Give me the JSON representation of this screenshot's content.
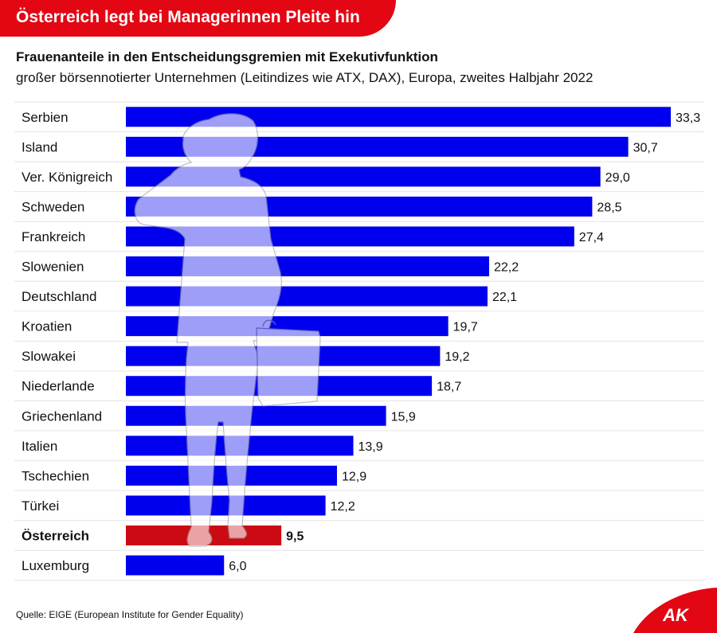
{
  "header": {
    "banner_title": "Österreich legt bei Managerinnen Pleite hin"
  },
  "chart_data": {
    "type": "bar",
    "orientation": "horizontal",
    "title": "Frauenanteile in den Entscheidungsgremien mit Exekutivfunktion",
    "subtitle": "großer börsennotierter Unternehmen (Leitindizes wie ATX, DAX), Europa, zweites Halbjahr 2022",
    "categories": [
      "Serbien",
      "Island",
      "Ver. Königreich",
      "Schweden",
      "Frankreich",
      "Slowenien",
      "Deutschland",
      "Kroatien",
      "Slowakei",
      "Niederlande",
      "Griechenland",
      "Italien",
      "Tschechien",
      "Türkei",
      "Österreich",
      "Luxemburg"
    ],
    "values": [
      33.3,
      30.7,
      29.0,
      28.5,
      27.4,
      22.2,
      22.1,
      19.7,
      19.2,
      18.7,
      15.9,
      13.9,
      12.9,
      12.2,
      9.5,
      6.0
    ],
    "value_labels": [
      "33,3",
      "30,7",
      "29,0",
      "28,5",
      "27,4",
      "22,2",
      "22,1",
      "19,7",
      "19,2",
      "18,7",
      "15,9",
      "13,9",
      "12,9",
      "12,2",
      "9,5",
      "6,0"
    ],
    "highlight": "Österreich",
    "xlim": [
      0,
      33.3
    ],
    "colors": {
      "bar": "#0000ee",
      "highlight": "#cc0a14"
    }
  },
  "footer": {
    "source": "Quelle: EIGE (European Institute for Gender Equality)",
    "logo_text": "AK"
  },
  "colors": {
    "brand_red": "#e30613"
  },
  "decoration": {
    "icon": "woman-silhouette-icon"
  }
}
